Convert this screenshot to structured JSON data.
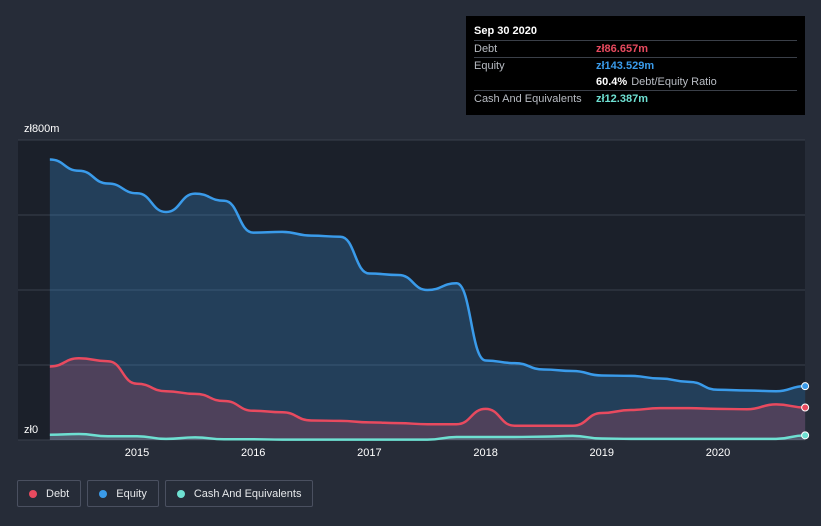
{
  "tooltip": {
    "date": "Sep 30 2020",
    "rows": [
      {
        "label": "Debt",
        "value": "zł86.657m",
        "color": "#e84a5f"
      },
      {
        "label": "Equity",
        "value": "zł143.529m",
        "color": "#3a9bea"
      },
      {
        "label": "",
        "value": "60.4%",
        "suffix": "Debt/Equity Ratio",
        "color": "#ffffff"
      },
      {
        "label": "Cash And Equivalents",
        "value": "zł12.387m",
        "color": "#6ee0d2"
      }
    ]
  },
  "legend": [
    {
      "name": "Debt",
      "color": "#e84a5f"
    },
    {
      "name": "Equity",
      "color": "#3a9bea"
    },
    {
      "name": "Cash And Equivalents",
      "color": "#6ee0d2"
    }
  ],
  "chart_data": {
    "type": "area",
    "ylim": [
      0,
      800
    ],
    "y_tick_labels": [
      {
        "value": 800,
        "label": "zł800m"
      },
      {
        "value": 0,
        "label": "zł0"
      }
    ],
    "x_tick_labels": [
      {
        "value": 2015,
        "label": "2015"
      },
      {
        "value": 2016,
        "label": "2016"
      },
      {
        "value": 2017,
        "label": "2017"
      },
      {
        "value": 2018,
        "label": "2018"
      },
      {
        "value": 2019,
        "label": "2019"
      },
      {
        "value": 2020,
        "label": "2020"
      }
    ],
    "xlim": [
      2014.3,
      2020.75
    ],
    "gridlines": [
      0,
      200,
      400,
      600,
      800
    ],
    "series": [
      {
        "name": "Equity",
        "color": "#3a9bea",
        "points": [
          [
            2014.25,
            748
          ],
          [
            2014.5,
            718
          ],
          [
            2014.75,
            684
          ],
          [
            2015.0,
            658
          ],
          [
            2015.25,
            608
          ],
          [
            2015.5,
            657
          ],
          [
            2015.75,
            638
          ],
          [
            2016.0,
            553
          ],
          [
            2016.25,
            555
          ],
          [
            2016.5,
            545
          ],
          [
            2016.75,
            542
          ],
          [
            2017.0,
            444
          ],
          [
            2017.25,
            440
          ],
          [
            2017.5,
            400
          ],
          [
            2017.75,
            418
          ],
          [
            2018.0,
            212
          ],
          [
            2018.25,
            205
          ],
          [
            2018.5,
            188
          ],
          [
            2018.75,
            184
          ],
          [
            2019.0,
            172
          ],
          [
            2019.25,
            171
          ],
          [
            2019.5,
            164
          ],
          [
            2019.75,
            155
          ],
          [
            2020.0,
            134
          ],
          [
            2020.25,
            132
          ],
          [
            2020.5,
            130
          ],
          [
            2020.75,
            143.529
          ]
        ]
      },
      {
        "name": "Debt",
        "color": "#e84a5f",
        "points": [
          [
            2014.25,
            196
          ],
          [
            2014.5,
            218
          ],
          [
            2014.75,
            210
          ],
          [
            2015.0,
            150
          ],
          [
            2015.25,
            130
          ],
          [
            2015.5,
            123
          ],
          [
            2015.75,
            104
          ],
          [
            2016.0,
            78
          ],
          [
            2016.25,
            74
          ],
          [
            2016.5,
            52
          ],
          [
            2016.75,
            51
          ],
          [
            2017.0,
            47
          ],
          [
            2017.25,
            45
          ],
          [
            2017.5,
            42
          ],
          [
            2017.75,
            42
          ],
          [
            2018.0,
            83
          ],
          [
            2018.25,
            38
          ],
          [
            2018.5,
            38
          ],
          [
            2018.75,
            38
          ],
          [
            2019.0,
            72
          ],
          [
            2019.25,
            80
          ],
          [
            2019.5,
            85
          ],
          [
            2019.75,
            85
          ],
          [
            2020.0,
            83
          ],
          [
            2020.25,
            82
          ],
          [
            2020.5,
            95
          ],
          [
            2020.75,
            86.657
          ]
        ]
      },
      {
        "name": "Cash And Equivalents",
        "color": "#6ee0d2",
        "points": [
          [
            2014.25,
            14
          ],
          [
            2014.5,
            16
          ],
          [
            2014.75,
            10
          ],
          [
            2015.0,
            10
          ],
          [
            2015.25,
            3
          ],
          [
            2015.5,
            7
          ],
          [
            2015.75,
            2
          ],
          [
            2016.0,
            2
          ],
          [
            2016.25,
            1
          ],
          [
            2016.5,
            1
          ],
          [
            2016.75,
            1
          ],
          [
            2017.0,
            1
          ],
          [
            2017.25,
            1
          ],
          [
            2017.5,
            1
          ],
          [
            2017.75,
            8
          ],
          [
            2018.0,
            8
          ],
          [
            2018.25,
            8
          ],
          [
            2018.5,
            9
          ],
          [
            2018.75,
            11
          ],
          [
            2019.0,
            4
          ],
          [
            2019.25,
            3
          ],
          [
            2019.5,
            3
          ],
          [
            2019.75,
            3
          ],
          [
            2020.0,
            3
          ],
          [
            2020.25,
            3
          ],
          [
            2020.5,
            3
          ],
          [
            2020.75,
            12.387
          ]
        ]
      }
    ]
  }
}
